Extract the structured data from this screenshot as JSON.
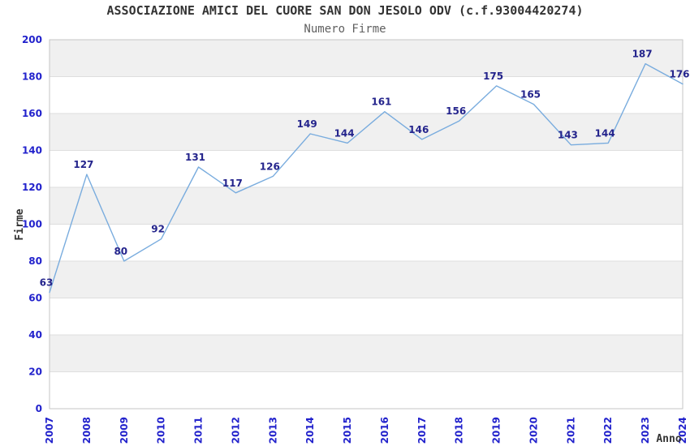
{
  "chart_data": {
    "type": "line",
    "title": "ASSOCIAZIONE AMICI DEL CUORE SAN DON JESOLO ODV (c.f.93004420274)",
    "subtitle": "Numero Firme",
    "xlabel": "Anno",
    "ylabel": "Firme",
    "x": [
      2007,
      2008,
      2009,
      2010,
      2011,
      2012,
      2013,
      2014,
      2015,
      2016,
      2017,
      2018,
      2019,
      2020,
      2021,
      2022,
      2023,
      2024
    ],
    "series": [
      {
        "name": "Numero Firme",
        "values": [
          63,
          127,
          80,
          92,
          131,
          117,
          126,
          149,
          144,
          161,
          146,
          156,
          175,
          165,
          143,
          144,
          187,
          176
        ]
      }
    ],
    "ylim": [
      0,
      200
    ],
    "ytick_step": 20,
    "grid": true,
    "legend": "none",
    "data_labels": true,
    "colors": {
      "line": "#79acde",
      "data_label": "#24248c",
      "tick_label": "#2222cc",
      "title": "#333333",
      "subtitle": "#606060",
      "axis_title": "#333333",
      "band_alt": "#f0f0f0",
      "band_base": "#ffffff",
      "gridline": "#dedede",
      "plot_border": "#c6c6c6",
      "background": "#ffffff"
    }
  }
}
